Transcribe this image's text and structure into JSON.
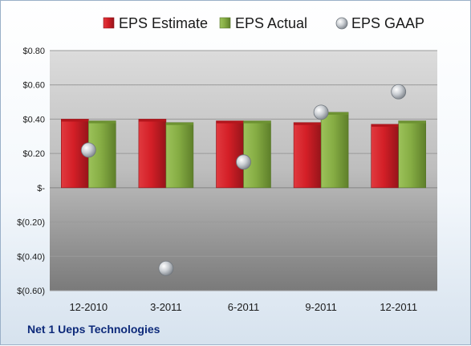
{
  "company_name": "Net 1 Ueps Technologies",
  "chart_data": {
    "type": "bar",
    "categories": [
      "12-2010",
      "3-2011",
      "6-2011",
      "9-2011",
      "12-2011"
    ],
    "series": [
      {
        "name": "EPS Estimate",
        "kind": "bar",
        "color": "#cc1f26",
        "values": [
          0.4,
          0.4,
          0.39,
          0.38,
          0.37
        ]
      },
      {
        "name": "EPS Actual",
        "kind": "bar",
        "color": "#7aa33a",
        "values": [
          0.39,
          0.38,
          0.39,
          0.44,
          0.39
        ]
      },
      {
        "name": "EPS GAAP",
        "kind": "scatter",
        "color": "#b7bcc2",
        "values": [
          0.22,
          -0.47,
          0.15,
          0.44,
          0.56
        ]
      }
    ],
    "ylim": [
      -0.6,
      0.8
    ],
    "yticks": [
      0.8,
      0.6,
      0.4,
      0.2,
      0,
      -0.2,
      -0.4,
      -0.6
    ],
    "ytick_labels": [
      "$0.80",
      "$0.60",
      "$0.40",
      "$0.20",
      "$-",
      "$(0.20)",
      "$(0.40)",
      "$(0.60)"
    ],
    "grid": true,
    "legend_position": "top"
  }
}
